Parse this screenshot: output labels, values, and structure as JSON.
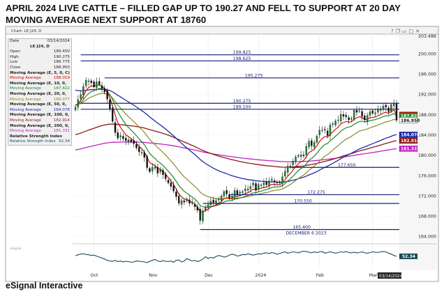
{
  "headline": "APRIL 2024 LIVE CATTLE –  FILLED GAP UP TO 190.27 AND FELL TO SUPPORT AT 20 DAY\nMOVING AVERAGE  NEXT SUPPORT AT 18760",
  "footer": "eSignal Interactive",
  "chart_window_title": "Chart: LE J24, D",
  "toolbar_icons": [
    "question-icon",
    "restore-icon",
    "minimize-icon",
    "maximize-icon",
    "close-icon"
  ],
  "data_panel": {
    "header": [
      "Date",
      "03/14/2024"
    ],
    "symbol": "LE J24, D",
    "rows": [
      {
        "label": "Open",
        "value": "189.450",
        "color": "#222222"
      },
      {
        "label": "High",
        "value": "190.275",
        "color": "#222222"
      },
      {
        "label": "Low",
        "value": "186.775",
        "color": "#222222"
      },
      {
        "label": "Close",
        "value": "186.950",
        "color": "#222222"
      },
      {
        "heading": "Moving Average (E, 5, 0, C)"
      },
      {
        "label": "Moving Average",
        "value": "188.019",
        "color": "#cc0000"
      },
      {
        "heading": "Moving Average (E, 10, 0, C)"
      },
      {
        "label": "Moving Average",
        "value": "187.822",
        "color": "#1a8a2a"
      },
      {
        "heading": "Moving Average (E, 20, 0, C)"
      },
      {
        "label": "Moving Average",
        "value": "186.977",
        "color": "#8a8a2a"
      },
      {
        "heading": "Moving Average (E, 50, 0, C)"
      },
      {
        "label": "Moving Average",
        "value": "184.078",
        "color": "#1a2aa8"
      },
      {
        "heading": "Moving Average (E, 100, 0, C)"
      },
      {
        "label": "Moving Average",
        "value": "182.914",
        "color": "#8a1a1a"
      },
      {
        "heading": "Moving Average (E, 200, 0, C)"
      },
      {
        "label": "Moving Average",
        "value": "181.331",
        "color": "#c020c0"
      },
      {
        "heading": "Relative Strength Index (14, C)"
      },
      {
        "label": "Relative Strength Index",
        "value": "52.34",
        "color": "#1a4a5a"
      }
    ]
  },
  "colors": {
    "candle_up": "#1a8a2a",
    "candle_down": "#111111",
    "ma5": "#cc0000",
    "ma10": "#1a8a2a",
    "ma20": "#8a8a2a",
    "ma50": "#1a2aa8",
    "ma100": "#8a1a1a",
    "ma200": "#c020c0",
    "hline": "#1a1a7a",
    "rsi": "#1a4a5a"
  },
  "chart_data": {
    "type": "candlestick",
    "ylim": [
      163,
      203.486
    ],
    "y_ticks": [
      "164.000",
      "168.000",
      "172.000",
      "176.000",
      "180.000",
      "184.000",
      "188.000",
      "192.000",
      "196.000",
      "200.000",
      "203.486"
    ],
    "x_ticks": [
      {
        "label": "Oct",
        "bar": 7
      },
      {
        "label": "Nov",
        "bar": 29
      },
      {
        "label": "Dec",
        "bar": 50
      },
      {
        "label": "2024",
        "bar": 69
      },
      {
        "label": "Feb",
        "bar": 92
      },
      {
        "label": "Mar",
        "bar": 112
      }
    ],
    "date_tag": "03/14/2024",
    "bars": 122,
    "close": [
      189.5,
      191.0,
      192.0,
      193.6,
      194.8,
      194.7,
      194.3,
      193.5,
      194.5,
      194.0,
      193.2,
      192.5,
      191.1,
      189.2,
      186.7,
      184.5,
      183.4,
      183.9,
      183.3,
      182.9,
      183.1,
      182.7,
      182.3,
      181.5,
      180.7,
      180.6,
      179.6,
      177.6,
      176.8,
      177.7,
      177.7,
      176.5,
      177.2,
      176.2,
      175.4,
      174.6,
      173.9,
      173.0,
      171.9,
      170.6,
      171.1,
      170.8,
      171.4,
      170.6,
      170.6,
      169.9,
      169.2,
      167.2,
      169.1,
      169.9,
      170.3,
      171.0,
      170.7,
      171.1,
      171.4,
      172.0,
      172.9,
      172.4,
      171.6,
      172.0,
      173.1,
      172.3,
      172.8,
      172.9,
      173.4,
      173.4,
      173.9,
      174.6,
      173.2,
      174.3,
      174.2,
      174.6,
      174.2,
      175.0,
      175.3,
      174.8,
      174.6,
      174.6,
      175.8,
      176.9,
      177.9,
      177.9,
      178.9,
      179.7,
      180.0,
      180.1,
      179.9,
      181.8,
      182.8,
      181.9,
      182.6,
      183.8,
      185.0,
      185.0,
      185.1,
      183.9,
      186.0,
      186.1,
      186.8,
      187.0,
      188.1,
      187.7,
      187.6,
      187.0,
      187.3,
      188.9,
      188.5,
      188.8,
      187.7,
      187.0,
      187.9,
      188.6,
      188.3,
      188.4,
      189.1,
      189.1,
      189.7,
      189.5,
      188.6,
      190.0,
      190.2,
      186.95
    ],
    "ma5_last": 188.019,
    "ma10_last": 187.822,
    "ma20_last": 186.977,
    "ma50_last": 184.078,
    "ma100_last": 182.914,
    "ma200_last": 181.331,
    "price_tags": [
      {
        "value": 188.019,
        "label": "188.019",
        "color": "#cc0000"
      },
      {
        "value": 187.822,
        "label": "187.822",
        "color": "#1a8a2a"
      },
      {
        "value": 186.95,
        "label": "186.950",
        "color": "#ffffff"
      },
      {
        "value": 184.078,
        "label": "184.078",
        "color": "#1a2aa8"
      },
      {
        "value": 182.914,
        "label": "182.914",
        "color": "#8a1a1a"
      },
      {
        "value": 181.331,
        "label": "181.331",
        "color": "#c020c0"
      }
    ],
    "annotations": [
      {
        "label": "199.825",
        "value": 199.825,
        "from_bar": 2
      },
      {
        "label": "198.625",
        "value": 198.625,
        "from_bar": 2
      },
      {
        "label": "195.275",
        "value": 195.275,
        "from_bar": 11
      },
      {
        "label": "190.275",
        "value": 190.275,
        "from_bar": 2
      },
      {
        "label": "189.100",
        "value": 189.1,
        "from_bar": 2
      },
      {
        "label": "177.650",
        "value": 177.65,
        "from_bar": 81
      },
      {
        "label": "172.275",
        "value": 172.275,
        "from_bar": 58
      },
      {
        "label": "170.550",
        "value": 170.55,
        "from_bar": 48
      },
      {
        "label": "165.400",
        "value": 165.4,
        "from_bar": 47
      }
    ],
    "annotation_note": "DECEMBER 6 2023",
    "rsi": {
      "value": "52.34",
      "ylim": [
        20,
        80
      ],
      "values": [
        54,
        57,
        59,
        60,
        58,
        57,
        55,
        56,
        53,
        50,
        47,
        44,
        40,
        38,
        37,
        40,
        36,
        38,
        35,
        37,
        36,
        34,
        35,
        38,
        37,
        36,
        35,
        33,
        37,
        40,
        43,
        38,
        36,
        39,
        37,
        36,
        38,
        34,
        40,
        41,
        35,
        38,
        45,
        42,
        38,
        40,
        36,
        39,
        44,
        51,
        46,
        49,
        47,
        52,
        55,
        53,
        50,
        52,
        56,
        59,
        57,
        53,
        55,
        58,
        57,
        60,
        58,
        56,
        58,
        60,
        59,
        62,
        63,
        61,
        64,
        62,
        59,
        61,
        64,
        66,
        62,
        64,
        66,
        65,
        63,
        66,
        68,
        67,
        65,
        63,
        66,
        64,
        66,
        67,
        62,
        64,
        66,
        64,
        62,
        64,
        66,
        65,
        67,
        64,
        63,
        65,
        63,
        64,
        66,
        63,
        62,
        64,
        66,
        65,
        64,
        66,
        67,
        66,
        62,
        59,
        55,
        52.34
      ]
    }
  }
}
